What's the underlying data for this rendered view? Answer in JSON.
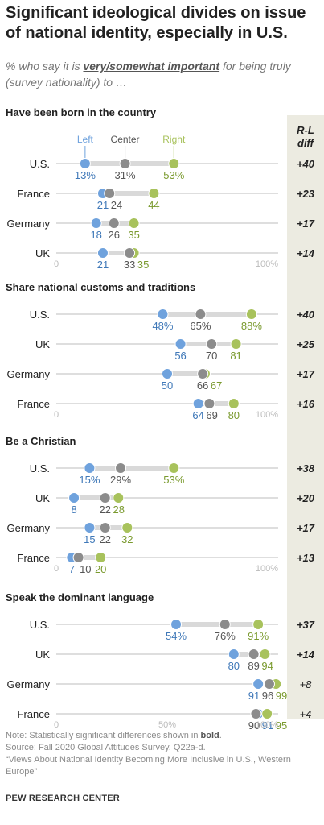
{
  "title": "Significant ideological divides on issue of national identity, especially in U.S.",
  "subtitle": {
    "before": "% who say it is ",
    "emphasis": "very/somewhat important",
    "after": " for being truly (survey nationality) to …"
  },
  "chart_data": {
    "type": "dot",
    "x_range": [
      0,
      100
    ],
    "axis_labels": {
      "start": "0",
      "mid": "50%",
      "end": "100%"
    },
    "series": [
      {
        "name": "Left",
        "color": "#6fa2dd"
      },
      {
        "name": "Center",
        "color": "#8c8c8c"
      },
      {
        "name": "Right",
        "color": "#a8c25c"
      }
    ],
    "diff_header": "R-L diff",
    "panels": [
      {
        "title": "Have been born in the country",
        "show_mid": false,
        "rows": [
          {
            "country": "U.S.",
            "left": 13,
            "center": 31,
            "right": 53,
            "diff": "+40",
            "bold": true,
            "pct": true
          },
          {
            "country": "France",
            "left": 21,
            "center": 24,
            "right": 44,
            "diff": "+23",
            "bold": true
          },
          {
            "country": "Germany",
            "left": 18,
            "center": 26,
            "right": 35,
            "diff": "+17",
            "bold": true
          },
          {
            "country": "UK",
            "left": 21,
            "center": 33,
            "right": 35,
            "diff": "+14",
            "bold": true
          }
        ]
      },
      {
        "title": "Share national customs and traditions",
        "show_mid": false,
        "rows": [
          {
            "country": "U.S.",
            "left": 48,
            "center": 65,
            "right": 88,
            "diff": "+40",
            "bold": true,
            "pct": true
          },
          {
            "country": "UK",
            "left": 56,
            "center": 70,
            "right": 81,
            "diff": "+25",
            "bold": true
          },
          {
            "country": "Germany",
            "left": 50,
            "center": 66,
            "right": 67,
            "diff": "+17",
            "bold": true
          },
          {
            "country": "France",
            "left": 64,
            "center": 69,
            "right": 80,
            "diff": "+16",
            "bold": true
          }
        ]
      },
      {
        "title": "Be a Christian",
        "show_mid": false,
        "rows": [
          {
            "country": "U.S.",
            "left": 15,
            "center": 29,
            "right": 53,
            "diff": "+38",
            "bold": true,
            "pct": true
          },
          {
            "country": "UK",
            "left": 8,
            "center": 22,
            "right": 28,
            "diff": "+20",
            "bold": true
          },
          {
            "country": "Germany",
            "left": 15,
            "center": 22,
            "right": 32,
            "diff": "+17",
            "bold": true
          },
          {
            "country": "France",
            "left": 7,
            "center": 10,
            "right": 20,
            "diff": "+13",
            "bold": true
          }
        ]
      },
      {
        "title": "Speak the dominant language",
        "show_mid": true,
        "rows": [
          {
            "country": "U.S.",
            "left": 54,
            "center": 76,
            "right": 91,
            "diff": "+37",
            "bold": true,
            "pct": true
          },
          {
            "country": "UK",
            "left": 80,
            "center": 89,
            "right": 94,
            "diff": "+14",
            "bold": true
          },
          {
            "country": "Germany",
            "left": 91,
            "center": 96,
            "right": 99,
            "diff": "+8",
            "bold": false
          },
          {
            "country": "France",
            "left": 91,
            "center": 90,
            "right": 95,
            "diff": "+4",
            "bold": false
          }
        ]
      }
    ]
  },
  "notes": {
    "note_before": "Note: Statistically significant differences shown in ",
    "note_bold": "bold",
    "note_after": ".",
    "source": "Source: Fall 2020 Global Attitudes Survey. Q22a-d.",
    "report": "“Views About National Identity Becoming More Inclusive in U.S., Western Europe”"
  },
  "footer": "PEW RESEARCH CENTER"
}
